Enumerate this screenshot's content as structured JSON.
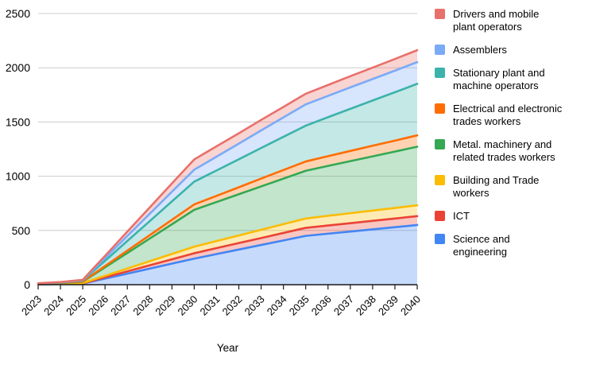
{
  "axis": {
    "text_color": "#000000",
    "gridline_color": "#cccccc",
    "baseline_color": "#1a1a1a",
    "background": "#ffffff"
  },
  "chart_data": {
    "type": "area",
    "stacked": true,
    "xlabel": "Year",
    "ylabel": "",
    "x": [
      2023,
      2024,
      2025,
      2026,
      2027,
      2028,
      2029,
      2030,
      2031,
      2032,
      2033,
      2034,
      2035,
      2036,
      2037,
      2038,
      2039,
      2040
    ],
    "ylim": [
      0,
      2500
    ],
    "yticks": [
      0,
      500,
      1000,
      1500,
      2000,
      2500
    ],
    "grid": true,
    "legend_position": "right",
    "fill_opacity": 0.3,
    "series": [
      {
        "name": "Drivers and mobile plant operators",
        "color": "#E8706B",
        "values": [
          1,
          2,
          3,
          21,
          40,
          58,
          77,
          95,
          96,
          96,
          97,
          97,
          98,
          100,
          103,
          105,
          108,
          110
        ]
      },
      {
        "name": "Assemblers",
        "color": "#7BAAF7",
        "values": [
          1,
          2,
          4,
          25,
          46,
          68,
          89,
          110,
          127,
          144,
          162,
          179,
          196,
          197,
          198,
          198,
          199,
          200
        ]
      },
      {
        "name": "Stationary plant and machine operators",
        "color": "#3BB3AB",
        "values": [
          2,
          3,
          8,
          48,
          89,
          129,
          170,
          210,
          234,
          258,
          282,
          306,
          330,
          359,
          388,
          417,
          446,
          475
        ]
      },
      {
        "name": "Electrical and electronic trades workers",
        "color": "#FF6D01",
        "values": [
          1,
          2,
          3,
          12,
          22,
          31,
          41,
          50,
          57,
          64,
          72,
          79,
          86,
          90,
          94,
          98,
          101,
          105
        ]
      },
      {
        "name": "Metal. machinery and related trades workers",
        "color": "#34A853",
        "values": [
          3,
          6,
          12,
          78,
          143,
          209,
          274,
          340,
          360,
          380,
          400,
          420,
          440,
          460,
          480,
          500,
          520,
          540
        ]
      },
      {
        "name": "Building and Trade workers",
        "color": "#FBBC04",
        "values": [
          1,
          2,
          3,
          14,
          26,
          37,
          49,
          60,
          65,
          70,
          76,
          81,
          86,
          89,
          92,
          94,
          97,
          100
        ]
      },
      {
        "name": "ICT",
        "color": "#EA4335",
        "values": [
          1,
          1,
          2,
          12,
          21,
          31,
          40,
          50,
          55,
          60,
          64,
          69,
          74,
          76,
          77,
          79,
          80,
          82
        ]
      },
      {
        "name": "Science and engineering",
        "color": "#4285F4",
        "values": [
          3,
          6,
          10,
          56,
          102,
          148,
          194,
          240,
          282,
          324,
          366,
          408,
          450,
          470,
          490,
          510,
          530,
          550
        ]
      }
    ]
  }
}
